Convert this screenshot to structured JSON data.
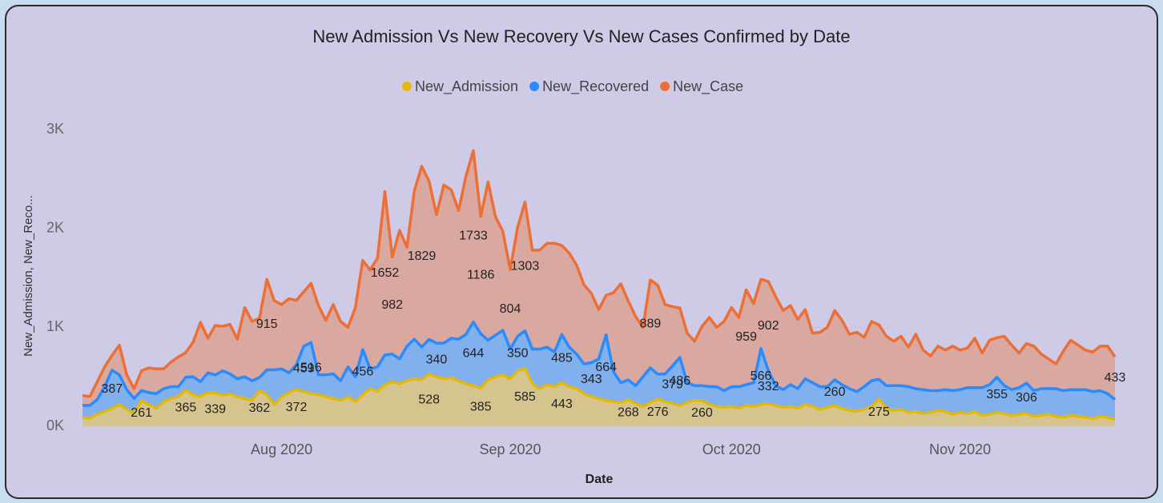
{
  "chart_data": {
    "type": "stacked_area",
    "title": "New Admission Vs New Recovery Vs New Cases Confirmed by Date",
    "x_label": "Date",
    "y_label": "New_Admission, New_Reco...",
    "categories": [
      null,
      null,
      null,
      null,
      null,
      null,
      null,
      null,
      null,
      null,
      null,
      null,
      null,
      null,
      null,
      null,
      null,
      null,
      null,
      null,
      null,
      null,
      null,
      null,
      null,
      null,
      null,
      "Aug 2020",
      null,
      null,
      null,
      null,
      null,
      null,
      null,
      null,
      null,
      null,
      null,
      null,
      null,
      null,
      null,
      null,
      null,
      null,
      null,
      null,
      null,
      null,
      null,
      null,
      null,
      null,
      null,
      null,
      null,
      null,
      "Sep 2020",
      null,
      null,
      null,
      null,
      null,
      null,
      null,
      null,
      null,
      null,
      null,
      null,
      null,
      null,
      null,
      null,
      null,
      null,
      null,
      null,
      null,
      null,
      null,
      null,
      null,
      null,
      null,
      null,
      null,
      "Oct 2020",
      null,
      null,
      null,
      null,
      null,
      null,
      null,
      null,
      null,
      null,
      null,
      null,
      null,
      null,
      null,
      null,
      null,
      null,
      null,
      null,
      null,
      null,
      null,
      null,
      null,
      null,
      null,
      null,
      null,
      null,
      "Nov 2020",
      null,
      null,
      null,
      null,
      null,
      null,
      null,
      null,
      null,
      null,
      null,
      null,
      null,
      null,
      null,
      null,
      null,
      null,
      null,
      null,
      null
    ],
    "ylim": [
      0,
      3000
    ],
    "yticks": [
      {
        "value": 0,
        "label": "0K"
      },
      {
        "value": 1000,
        "label": "1K"
      },
      {
        "value": 2000,
        "label": "2K"
      },
      {
        "value": 3000,
        "label": "3K"
      }
    ],
    "grid": true,
    "legend": "top",
    "series": [
      {
        "name": "New_Admission",
        "color": "#e2b80a",
        "fill": "#d6c48e",
        "values": [
          90,
          80,
          120,
          150,
          180,
          220,
          170,
          130,
          261,
          220,
          180,
          250,
          280,
          300,
          365,
          320,
          300,
          340,
          339,
          310,
          330,
          300,
          280,
          260,
          362,
          320,
          220,
          300,
          340,
          372,
          350,
          330,
          320,
          300,
          280,
          260,
          300,
          250,
          320,
          380,
          350,
          420,
          450,
          430,
          460,
          480,
          470,
          528,
          500,
          480,
          490,
          460,
          430,
          410,
          385,
          470,
          500,
          520,
          480,
          560,
          585,
          430,
          380,
          420,
          400,
          443,
          400,
          380,
          330,
          300,
          280,
          260,
          250,
          240,
          268,
          230,
          200,
          240,
          276,
          250,
          230,
          210,
          240,
          260,
          260,
          220,
          200,
          190,
          200,
          180,
          210,
          200,
          220,
          230,
          210,
          190,
          200,
          180,
          220,
          200,
          170,
          190,
          210,
          180,
          160,
          150,
          170,
          200,
          275,
          180,
          160,
          170,
          140,
          150,
          130,
          140,
          160,
          150,
          120,
          140,
          130,
          150,
          110,
          120,
          140,
          130,
          110,
          120,
          130,
          100,
          110,
          120,
          100,
          90,
          110,
          100,
          90,
          80,
          100,
          90,
          70
        ],
        "labeled_points": [
          8,
          14,
          18,
          24,
          29,
          47,
          54,
          60,
          65,
          74,
          78,
          84,
          108
        ]
      },
      {
        "name": "New_Recovered",
        "color": "#2a8bff",
        "fill": "#80b0ee",
        "values": [
          120,
          130,
          150,
          250,
          387,
          300,
          200,
          150,
          100,
          120,
          150,
          130,
          120,
          100,
          130,
          180,
          150,
          200,
          180,
          250,
          200,
          180,
          220,
          200,
          130,
          250,
          350,
          280,
          200,
          250,
          459,
          516,
          200,
          220,
          250,
          200,
          300,
          250,
          456,
          200,
          250,
          300,
          280,
          250,
          350,
          400,
          330,
          350,
          340,
          360,
          400,
          420,
          500,
          644,
          550,
          400,
          420,
          450,
          300,
          350,
          380,
          350,
          400,
          380,
          350,
          485,
          400,
          350,
          300,
          343,
          400,
          664,
          300,
          200,
          200,
          180,
          300,
          350,
          250,
          280,
          379,
          486,
          200,
          150,
          150,
          180,
          200,
          170,
          200,
          220,
          210,
          240,
          566,
          332,
          200,
          180,
          220,
          200,
          260,
          240,
          230,
          210,
          260,
          240,
          220,
          200,
          230,
          260,
          200,
          230,
          250,
          240,
          260,
          230,
          240,
          220,
          200,
          220,
          240,
          230,
          260,
          240,
          280,
          300,
          355,
          280,
          260,
          270,
          306,
          260,
          270,
          260,
          280,
          270,
          260,
          270,
          280,
          270,
          260,
          240,
          200
        ],
        "labeled_points": [
          4,
          30,
          31,
          38,
          48,
          53,
          59,
          65,
          69,
          71,
          80,
          81,
          92,
          93,
          102,
          124,
          128
        ]
      },
      {
        "name": "New_Case",
        "color": "#ec6f35",
        "fill": "#d9a8a0",
        "values": [
          100,
          90,
          180,
          200,
          150,
          300,
          150,
          100,
          200,
          250,
          250,
          200,
          250,
          300,
          250,
          350,
          600,
          350,
          500,
          450,
          500,
          400,
          700,
          600,
          600,
          915,
          700,
          650,
          750,
          650,
          550,
          600,
          700,
          550,
          700,
          600,
          400,
          700,
          900,
          1000,
          1100,
          1652,
          982,
          1300,
          1000,
          1500,
          1829,
          1600,
          1300,
          1600,
          1500,
          1300,
          1600,
          1733,
          1186,
          1600,
          1200,
          1000,
          804,
          1100,
          1303,
          1000,
          1000,
          1050,
          1100,
          900,
          950,
          900,
          800,
          700,
          500,
          400,
          800,
          1000,
          800,
          700,
          500,
          889,
          900,
          700,
          600,
          500,
          500,
          450,
          600,
          700,
          600,
          700,
          800,
          700,
          959,
          800,
          700,
          902,
          900,
          800,
          800,
          700,
          700,
          500,
          550,
          600,
          700,
          650,
          550,
          600,
          500,
          600,
          550,
          500,
          450,
          500,
          400,
          550,
          400,
          350,
          450,
          400,
          450,
          400,
          400,
          500,
          350,
          450,
          400,
          500,
          450,
          350,
          400,
          450,
          350,
          300,
          250,
          400,
          500,
          450,
          400,
          400,
          450,
          480,
          433
        ],
        "labeled_points": [
          25,
          41,
          42,
          46,
          53,
          54,
          58,
          60,
          77,
          90,
          93,
          140
        ]
      }
    ]
  }
}
